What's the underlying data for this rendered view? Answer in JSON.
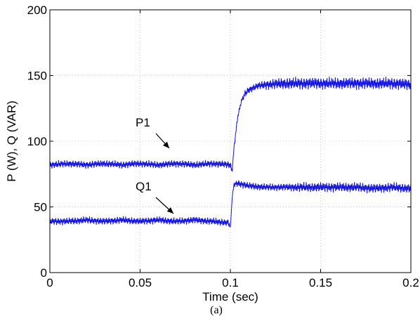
{
  "chart_data": {
    "type": "line",
    "title": "",
    "xlabel": "Time (sec)",
    "ylabel": "P (W), Q (VAR)",
    "caption": "(a)",
    "xlim": [
      0,
      0.2
    ],
    "ylim": [
      0,
      200
    ],
    "xticks": [
      0,
      0.05,
      0.1,
      0.15,
      0.2
    ],
    "xtick_labels": [
      "0",
      "0.05",
      "0.1",
      "0.15",
      "0.2"
    ],
    "yticks": [
      0,
      50,
      100,
      150,
      200
    ],
    "ytick_labels": [
      "0",
      "50",
      "100",
      "150",
      "200"
    ],
    "grid": true,
    "line_color": "#1010e0",
    "series": [
      {
        "name": "P1",
        "x": [
          0,
          0.01,
          0.02,
          0.03,
          0.04,
          0.05,
          0.06,
          0.07,
          0.08,
          0.09,
          0.1,
          0.101,
          0.102,
          0.104,
          0.106,
          0.108,
          0.11,
          0.115,
          0.12,
          0.13,
          0.14,
          0.15,
          0.16,
          0.17,
          0.18,
          0.19,
          0.2
        ],
        "values": [
          82,
          83,
          82,
          83,
          82,
          83,
          82,
          83,
          82,
          83,
          82,
          77,
          95,
          118,
          130,
          136,
          139,
          142,
          143,
          144,
          144,
          144,
          144,
          144,
          144,
          144,
          143
        ],
        "oscillation_amplitude": [
          3,
          3,
          3,
          3,
          3,
          3,
          3,
          3,
          3,
          3,
          3,
          1,
          2,
          2,
          2,
          3,
          3,
          3,
          4,
          5,
          5,
          5,
          5,
          5,
          5,
          5,
          5
        ]
      },
      {
        "name": "Q1",
        "x": [
          0,
          0.01,
          0.02,
          0.03,
          0.04,
          0.05,
          0.06,
          0.07,
          0.08,
          0.09,
          0.099,
          0.1,
          0.101,
          0.102,
          0.104,
          0.11,
          0.12,
          0.13,
          0.14,
          0.15,
          0.16,
          0.17,
          0.18,
          0.19,
          0.2
        ],
        "values": [
          39,
          39,
          40,
          39,
          40,
          39,
          40,
          39,
          40,
          39,
          38,
          34,
          57,
          67,
          68,
          66,
          65,
          65,
          65,
          65,
          65,
          65,
          64,
          65,
          64
        ],
        "oscillation_amplitude": [
          3,
          3,
          3,
          3,
          3,
          3,
          3,
          3,
          3,
          3,
          3,
          1,
          1,
          2,
          3,
          3,
          3,
          3,
          4,
          4,
          4,
          4,
          4,
          4,
          4
        ]
      }
    ],
    "annotations": [
      {
        "text": "P1",
        "target_series": "P1"
      },
      {
        "text": "Q1",
        "target_series": "Q1"
      }
    ]
  }
}
